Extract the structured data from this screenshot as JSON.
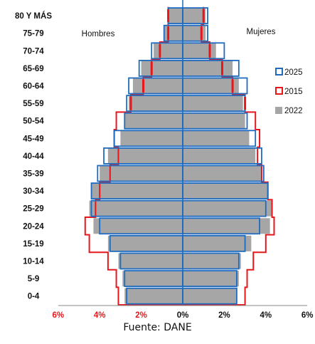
{
  "chart_data": {
    "type": "bar",
    "orientation": "horizontal",
    "layout": "population-pyramid",
    "categories": [
      "0-4",
      "5-9",
      "10-14",
      "15-19",
      "20-24",
      "25-29",
      "30-34",
      "35-39",
      "40-44",
      "45-49",
      "50-54",
      "55-59",
      "60-64",
      "65-69",
      "70-74",
      "75-79",
      "80 Y MÁS"
    ],
    "group_left": "Hombres",
    "group_right": "Mujeres",
    "x_ticks_left": [
      "6%",
      "4%",
      "2%"
    ],
    "x_ticks_right": [
      "0%",
      "2%",
      "4%",
      "6%"
    ],
    "xlim": [
      -6,
      6
    ],
    "grid": false,
    "legend_position": "right",
    "series": [
      {
        "name": "2022",
        "style": "filled",
        "color": "#a6a6a6",
        "hombres": [
          2.8,
          2.9,
          3.1,
          3.6,
          4.3,
          4.5,
          4.4,
          4.0,
          3.6,
          3.0,
          2.8,
          2.6,
          2.4,
          2.0,
          1.4,
          0.9,
          0.7
        ],
        "mujeres": [
          2.6,
          2.7,
          2.8,
          3.3,
          4.2,
          4.3,
          4.1,
          3.8,
          3.5,
          3.2,
          3.0,
          2.9,
          2.7,
          2.4,
          1.6,
          1.1,
          1.1
        ]
      },
      {
        "name": "2025",
        "style": "outline",
        "color": "#1f6bbf",
        "hombres": [
          2.7,
          2.8,
          3.0,
          3.5,
          4.0,
          4.4,
          4.4,
          4.1,
          3.8,
          3.3,
          2.8,
          2.7,
          2.6,
          2.1,
          1.5,
          0.9,
          0.7
        ],
        "mujeres": [
          2.6,
          2.6,
          2.7,
          3.0,
          3.7,
          4.0,
          4.1,
          3.9,
          3.8,
          3.5,
          3.1,
          3.0,
          3.1,
          2.7,
          2.0,
          1.2,
          1.2
        ]
      },
      {
        "name": "2015",
        "style": "marker",
        "color": "#e8161a",
        "hombres": [
          3.1,
          3.2,
          3.6,
          4.5,
          4.7,
          4.2,
          4.0,
          3.5,
          3.1,
          3.3,
          3.2,
          2.5,
          1.9,
          1.5,
          1.1,
          0.7,
          0.7
        ],
        "mujeres": [
          3.0,
          3.1,
          3.4,
          4.0,
          4.4,
          4.3,
          4.1,
          3.8,
          3.6,
          3.7,
          3.5,
          3.0,
          2.4,
          1.9,
          1.3,
          0.9,
          1.0
        ]
      }
    ],
    "legend_order": [
      "2025",
      "2015",
      "2022"
    ]
  },
  "source_text": "Fuente: DANE"
}
